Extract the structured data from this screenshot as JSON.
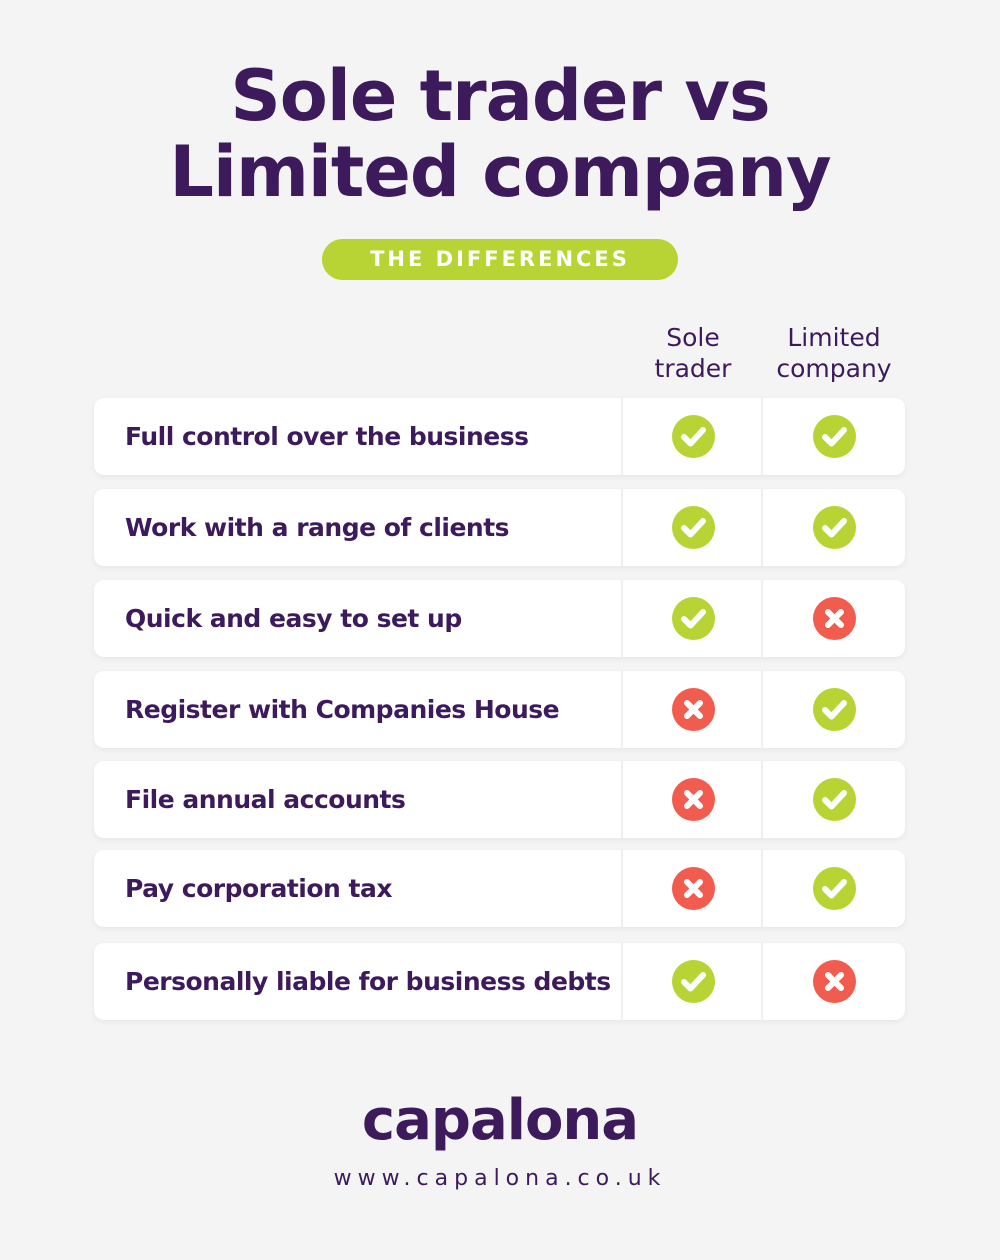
{
  "header": {
    "title_line1": "Sole trader vs",
    "title_line2": "Limited company",
    "badge": "THE DIFFERENCES"
  },
  "columns": [
    {
      "line1": "Sole",
      "line2": "trader"
    },
    {
      "line1": "Limited",
      "line2": "company"
    }
  ],
  "rows": [
    {
      "label": "Full control over the business",
      "sole_trader": "check",
      "limited_company": "check"
    },
    {
      "label": "Work with a range of clients",
      "sole_trader": "check",
      "limited_company": "check"
    },
    {
      "label": "Quick and easy to set up",
      "sole_trader": "check",
      "limited_company": "cross"
    },
    {
      "label": "Register with Companies House",
      "sole_trader": "cross",
      "limited_company": "check"
    },
    {
      "label": "File annual accounts",
      "sole_trader": "cross",
      "limited_company": "check"
    },
    {
      "label": "Pay corporation tax",
      "sole_trader": "cross",
      "limited_company": "check"
    },
    {
      "label": "Personally liable for business debts",
      "sole_trader": "check",
      "limited_company": "cross"
    }
  ],
  "footer": {
    "logo": "capalona",
    "url": "www.capalona.co.uk"
  },
  "colors": {
    "primary": "#3d1a5b",
    "accent": "#b8d334",
    "check": "#b8d334",
    "cross": "#f25c4f",
    "background": "#f4f4f4"
  }
}
